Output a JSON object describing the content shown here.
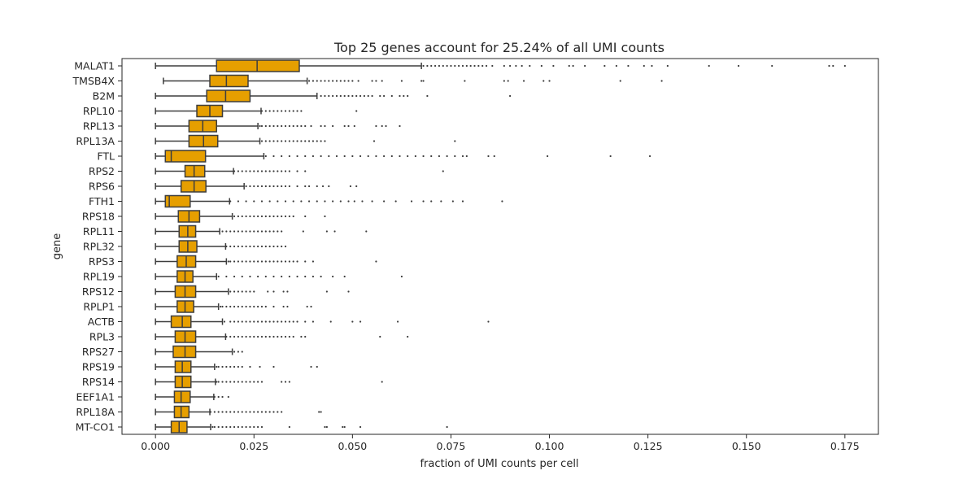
{
  "chart_data": {
    "type": "box",
    "orientation": "horizontal",
    "title": "Top 25 genes account for 25.24% of all UMI counts",
    "xlabel": "fraction of UMI counts per cell",
    "ylabel": "gene",
    "xlim": [
      -0.0085,
      0.1835
    ],
    "xticks": [
      0.0,
      0.025,
      0.05,
      0.075,
      0.1,
      0.125,
      0.15,
      0.175
    ],
    "xtick_labels": [
      "0.000",
      "0.025",
      "0.050",
      "0.075",
      "0.100",
      "0.125",
      "0.150",
      "0.175"
    ],
    "grid": false,
    "colors": {
      "box_fill": "#e69f00",
      "line": "#3d3d3d"
    },
    "genes": [
      {
        "name": "MALAT1",
        "whisker_low": 0.0,
        "q1": 0.0155,
        "median": 0.0258,
        "q3": 0.0365,
        "whisker_high": 0.0675,
        "outliers": [
          0.068,
          0.069,
          0.07,
          0.071,
          0.072,
          0.073,
          0.074,
          0.075,
          0.076,
          0.077,
          0.078,
          0.079,
          0.08,
          0.081,
          0.082,
          0.083,
          0.084,
          0.0855,
          0.0885,
          0.09,
          0.0915,
          0.093,
          0.095,
          0.098,
          0.101,
          0.105,
          0.106,
          0.109,
          0.114,
          0.117,
          0.12,
          0.124,
          0.126,
          0.13,
          0.1405,
          0.148,
          0.1565,
          0.171,
          0.172,
          0.175
        ]
      },
      {
        "name": "TMSB4X",
        "whisker_low": 0.002,
        "q1": 0.0138,
        "median": 0.018,
        "q3": 0.0235,
        "whisker_high": 0.0385,
        "outliers": [
          0.039,
          0.04,
          0.041,
          0.042,
          0.043,
          0.044,
          0.045,
          0.046,
          0.047,
          0.048,
          0.049,
          0.05,
          0.0515,
          0.055,
          0.056,
          0.0575,
          0.0625,
          0.0675,
          0.068,
          0.0785,
          0.0885,
          0.0895,
          0.0935,
          0.0985,
          0.1,
          0.118,
          0.1285
        ]
      },
      {
        "name": "B2M",
        "whisker_low": 0.0,
        "q1": 0.013,
        "median": 0.0178,
        "q3": 0.024,
        "whisker_high": 0.041,
        "outliers": [
          0.042,
          0.043,
          0.044,
          0.045,
          0.046,
          0.047,
          0.048,
          0.049,
          0.05,
          0.051,
          0.052,
          0.053,
          0.054,
          0.055,
          0.057,
          0.058,
          0.06,
          0.062,
          0.063,
          0.064,
          0.069,
          0.09
        ]
      },
      {
        "name": "RPL10",
        "whisker_low": 0.0,
        "q1": 0.0105,
        "median": 0.0138,
        "q3": 0.017,
        "whisker_high": 0.0268,
        "outliers": [
          0.027,
          0.028,
          0.029,
          0.03,
          0.031,
          0.032,
          0.033,
          0.034,
          0.035,
          0.036,
          0.037,
          0.051
        ]
      },
      {
        "name": "RPL13",
        "whisker_low": 0.0,
        "q1": 0.0085,
        "median": 0.012,
        "q3": 0.0155,
        "whisker_high": 0.026,
        "outliers": [
          0.0265,
          0.027,
          0.028,
          0.029,
          0.03,
          0.031,
          0.032,
          0.033,
          0.034,
          0.035,
          0.036,
          0.037,
          0.038,
          0.0395,
          0.042,
          0.043,
          0.045,
          0.048,
          0.049,
          0.0505,
          0.056,
          0.0575,
          0.0585,
          0.062
        ]
      },
      {
        "name": "RPL13A",
        "whisker_low": 0.0,
        "q1": 0.0085,
        "median": 0.0122,
        "q3": 0.0158,
        "whisker_high": 0.0265,
        "outliers": [
          0.027,
          0.028,
          0.029,
          0.03,
          0.031,
          0.032,
          0.033,
          0.034,
          0.035,
          0.036,
          0.037,
          0.038,
          0.039,
          0.04,
          0.041,
          0.042,
          0.043,
          0.0555,
          0.076
        ]
      },
      {
        "name": "FTL",
        "whisker_low": 0.0,
        "q1": 0.0025,
        "median": 0.004,
        "q3": 0.0127,
        "whisker_high": 0.0275,
        "outliers": [
          0.028,
          0.03,
          0.032,
          0.034,
          0.036,
          0.038,
          0.04,
          0.042,
          0.044,
          0.046,
          0.048,
          0.05,
          0.052,
          0.054,
          0.056,
          0.058,
          0.06,
          0.062,
          0.064,
          0.066,
          0.068,
          0.07,
          0.072,
          0.074,
          0.076,
          0.078,
          0.079,
          0.0845,
          0.086,
          0.0995,
          0.1155,
          0.1255
        ]
      },
      {
        "name": "RPS2",
        "whisker_low": 0.0,
        "q1": 0.0075,
        "median": 0.0098,
        "q3": 0.0125,
        "whisker_high": 0.0198,
        "outliers": [
          0.02,
          0.021,
          0.022,
          0.023,
          0.024,
          0.025,
          0.026,
          0.027,
          0.028,
          0.029,
          0.03,
          0.031,
          0.032,
          0.033,
          0.034,
          0.036,
          0.038,
          0.073
        ]
      },
      {
        "name": "RPS6",
        "whisker_low": 0.0,
        "q1": 0.0065,
        "median": 0.0098,
        "q3": 0.0128,
        "whisker_high": 0.0225,
        "outliers": [
          0.023,
          0.024,
          0.025,
          0.026,
          0.027,
          0.028,
          0.029,
          0.03,
          0.031,
          0.032,
          0.033,
          0.034,
          0.036,
          0.038,
          0.039,
          0.041,
          0.0425,
          0.044,
          0.0495,
          0.051
        ]
      },
      {
        "name": "FTH1",
        "whisker_low": 0.0,
        "q1": 0.0025,
        "median": 0.0035,
        "q3": 0.0088,
        "whisker_high": 0.0188,
        "outliers": [
          0.019,
          0.021,
          0.023,
          0.025,
          0.027,
          0.029,
          0.031,
          0.033,
          0.035,
          0.037,
          0.039,
          0.041,
          0.043,
          0.045,
          0.047,
          0.049,
          0.0505,
          0.0525,
          0.055,
          0.058,
          0.061,
          0.065,
          0.068,
          0.07,
          0.0725,
          0.0755,
          0.078,
          0.088
        ]
      },
      {
        "name": "RPS18",
        "whisker_low": 0.0,
        "q1": 0.0058,
        "median": 0.0085,
        "q3": 0.0112,
        "whisker_high": 0.0195,
        "outliers": [
          0.02,
          0.021,
          0.022,
          0.023,
          0.024,
          0.025,
          0.026,
          0.027,
          0.028,
          0.029,
          0.03,
          0.031,
          0.032,
          0.033,
          0.034,
          0.035,
          0.038,
          0.043
        ]
      },
      {
        "name": "RPL11",
        "whisker_low": 0.0,
        "q1": 0.006,
        "median": 0.0082,
        "q3": 0.0102,
        "whisker_high": 0.0163,
        "outliers": [
          0.017,
          0.018,
          0.019,
          0.02,
          0.021,
          0.022,
          0.023,
          0.024,
          0.025,
          0.026,
          0.027,
          0.028,
          0.029,
          0.03,
          0.031,
          0.032,
          0.0375,
          0.0435,
          0.0455,
          0.0535
        ]
      },
      {
        "name": "RPL32",
        "whisker_low": 0.0,
        "q1": 0.006,
        "median": 0.0082,
        "q3": 0.0105,
        "whisker_high": 0.0178,
        "outliers": [
          0.018,
          0.019,
          0.02,
          0.021,
          0.022,
          0.023,
          0.024,
          0.025,
          0.026,
          0.027,
          0.028,
          0.029,
          0.03,
          0.031,
          0.032,
          0.033
        ]
      },
      {
        "name": "RPS3",
        "whisker_low": 0.0,
        "q1": 0.0055,
        "median": 0.0078,
        "q3": 0.0102,
        "whisker_high": 0.018,
        "outliers": [
          0.0185,
          0.019,
          0.02,
          0.021,
          0.022,
          0.023,
          0.024,
          0.025,
          0.026,
          0.027,
          0.028,
          0.029,
          0.03,
          0.031,
          0.032,
          0.033,
          0.034,
          0.035,
          0.036,
          0.038,
          0.04,
          0.056
        ]
      },
      {
        "name": "RPL19",
        "whisker_low": 0.0,
        "q1": 0.0055,
        "median": 0.0075,
        "q3": 0.0095,
        "whisker_high": 0.0155,
        "outliers": [
          0.016,
          0.018,
          0.02,
          0.022,
          0.024,
          0.026,
          0.028,
          0.03,
          0.032,
          0.034,
          0.036,
          0.038,
          0.04,
          0.042,
          0.045,
          0.048,
          0.0625
        ]
      },
      {
        "name": "RPS12",
        "whisker_low": 0.0,
        "q1": 0.005,
        "median": 0.0075,
        "q3": 0.0102,
        "whisker_high": 0.0185,
        "outliers": [
          0.019,
          0.02,
          0.021,
          0.022,
          0.023,
          0.024,
          0.025,
          0.0285,
          0.03,
          0.0325,
          0.0335,
          0.0435,
          0.049
        ]
      },
      {
        "name": "RPLP1",
        "whisker_low": 0.0,
        "q1": 0.0055,
        "median": 0.0075,
        "q3": 0.0097,
        "whisker_high": 0.016,
        "outliers": [
          0.0165,
          0.017,
          0.018,
          0.019,
          0.02,
          0.021,
          0.022,
          0.023,
          0.024,
          0.025,
          0.026,
          0.027,
          0.028,
          0.03,
          0.0325,
          0.0335,
          0.0385,
          0.0395
        ]
      },
      {
        "name": "ACTB",
        "whisker_low": 0.0,
        "q1": 0.004,
        "median": 0.0068,
        "q3": 0.009,
        "whisker_high": 0.017,
        "outliers": [
          0.0175,
          0.019,
          0.02,
          0.021,
          0.022,
          0.023,
          0.024,
          0.025,
          0.026,
          0.027,
          0.028,
          0.029,
          0.03,
          0.031,
          0.032,
          0.033,
          0.034,
          0.035,
          0.036,
          0.038,
          0.04,
          0.0445,
          0.05,
          0.052,
          0.0615,
          0.0845
        ]
      },
      {
        "name": "RPL3",
        "whisker_low": 0.0,
        "q1": 0.005,
        "median": 0.0075,
        "q3": 0.0102,
        "whisker_high": 0.0178,
        "outliers": [
          0.018,
          0.019,
          0.02,
          0.021,
          0.022,
          0.023,
          0.024,
          0.025,
          0.026,
          0.027,
          0.028,
          0.029,
          0.03,
          0.031,
          0.032,
          0.033,
          0.034,
          0.035,
          0.037,
          0.038,
          0.057,
          0.064
        ]
      },
      {
        "name": "RPS27",
        "whisker_low": 0.0,
        "q1": 0.0045,
        "median": 0.0075,
        "q3": 0.0102,
        "whisker_high": 0.0195,
        "outliers": [
          0.02,
          0.021,
          0.022
        ]
      },
      {
        "name": "RPS19",
        "whisker_low": 0.0,
        "q1": 0.005,
        "median": 0.0068,
        "q3": 0.009,
        "whisker_high": 0.015,
        "outliers": [
          0.0155,
          0.016,
          0.017,
          0.018,
          0.019,
          0.02,
          0.021,
          0.022,
          0.024,
          0.0265,
          0.03,
          0.0395,
          0.041
        ]
      },
      {
        "name": "RPS14",
        "whisker_low": 0.0,
        "q1": 0.005,
        "median": 0.0068,
        "q3": 0.009,
        "whisker_high": 0.0152,
        "outliers": [
          0.0155,
          0.016,
          0.017,
          0.018,
          0.019,
          0.02,
          0.021,
          0.022,
          0.023,
          0.024,
          0.025,
          0.026,
          0.027,
          0.032,
          0.033,
          0.034,
          0.0575
        ]
      },
      {
        "name": "EEF1A1",
        "whisker_low": 0.0,
        "q1": 0.0048,
        "median": 0.0065,
        "q3": 0.0088,
        "whisker_high": 0.0148,
        "outliers": [
          0.015,
          0.016,
          0.017,
          0.0185
        ]
      },
      {
        "name": "RPL18A",
        "whisker_low": 0.0,
        "q1": 0.0048,
        "median": 0.0065,
        "q3": 0.0085,
        "whisker_high": 0.0138,
        "outliers": [
          0.014,
          0.015,
          0.016,
          0.017,
          0.018,
          0.019,
          0.02,
          0.021,
          0.022,
          0.023,
          0.024,
          0.025,
          0.026,
          0.027,
          0.028,
          0.029,
          0.03,
          0.031,
          0.032,
          0.0415,
          0.042
        ]
      },
      {
        "name": "MT-CO1",
        "whisker_low": 0.0,
        "q1": 0.004,
        "median": 0.006,
        "q3": 0.008,
        "whisker_high": 0.014,
        "outliers": [
          0.0145,
          0.015,
          0.016,
          0.017,
          0.018,
          0.019,
          0.02,
          0.021,
          0.022,
          0.023,
          0.024,
          0.025,
          0.026,
          0.027,
          0.034,
          0.043,
          0.0435,
          0.0475,
          0.048,
          0.052,
          0.074
        ]
      }
    ]
  }
}
